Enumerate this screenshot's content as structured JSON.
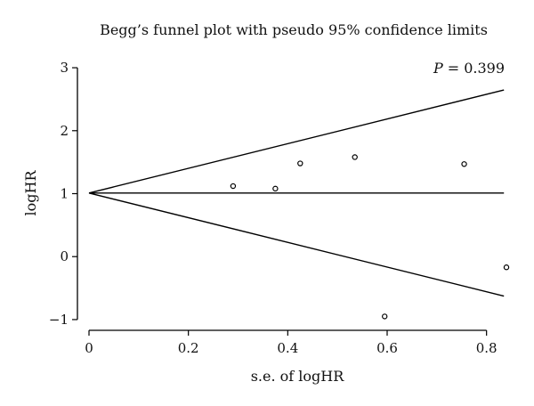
{
  "chart_data": {
    "type": "scatter",
    "title": "Begg’s funnel plot with pseudo 95% confidence limits",
    "xlabel": "s.e. of logHR",
    "ylabel": "logHR",
    "annotation": {
      "label": "P",
      "value": "= 0.399"
    },
    "xlim": [
      0,
      0.84
    ],
    "ylim": [
      -1.1,
      3.1
    ],
    "xticks": [
      0,
      0.2,
      0.4,
      0.6,
      0.8
    ],
    "xtick_labels": [
      "0",
      "0.2",
      "0.4",
      "0.6",
      "0.8"
    ],
    "yticks": [
      -1,
      0,
      1,
      2,
      3
    ],
    "ytick_labels": [
      "−1",
      "0",
      "1",
      "2",
      "3"
    ],
    "grid": false,
    "pooled_estimate": 1.01,
    "x_max_line": 0.835,
    "points": [
      {
        "x": 0.29,
        "y": 1.12
      },
      {
        "x": 0.375,
        "y": 1.08
      },
      {
        "x": 0.425,
        "y": 1.48
      },
      {
        "x": 0.535,
        "y": 1.58
      },
      {
        "x": 0.595,
        "y": -0.95
      },
      {
        "x": 0.755,
        "y": 1.47
      },
      {
        "x": 0.84,
        "y": -0.17
      }
    ]
  }
}
